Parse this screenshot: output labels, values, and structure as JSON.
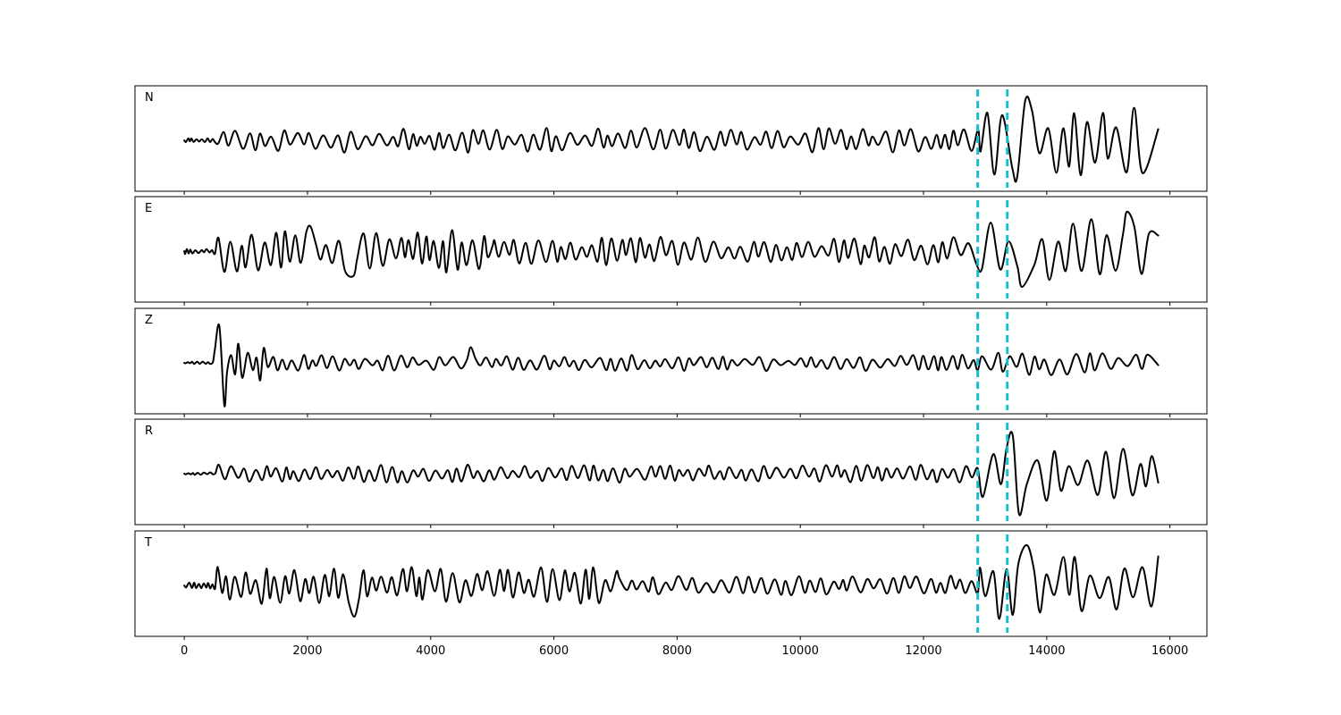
{
  "chart_data": {
    "type": "line",
    "title": "",
    "xlabel": "",
    "ylabel": "",
    "xlim": [
      -800,
      16600
    ],
    "x_start": 0,
    "x_end": 15800,
    "x_ticks": [
      0,
      2000,
      4000,
      6000,
      8000,
      10000,
      12000,
      14000,
      16000
    ],
    "x_tick_labels": [
      "0",
      "2000",
      "4000",
      "6000",
      "8000",
      "10000",
      "12000",
      "14000",
      "16000"
    ],
    "grid": false,
    "line_color": "#000000",
    "vertical_markers": {
      "x": [
        12880,
        13360
      ],
      "color": "#17BECF",
      "style": "dashed"
    },
    "panels": [
      {
        "label": "N",
        "segments": [
          {
            "x_start": 0,
            "x_end": 500,
            "amp": 0.05,
            "period": 85
          },
          {
            "x_start": 500,
            "x_end": 12880,
            "amp": 0.28,
            "period": 190
          },
          {
            "x_start": 12880,
            "x_end": 15800,
            "amp": 0.78,
            "period": 260
          }
        ],
        "peaks": [
          {
            "x": 13650,
            "y": 0.88
          },
          {
            "x": 13520,
            "y": -0.82
          },
          {
            "x": 15810,
            "y": 0.25
          }
        ]
      },
      {
        "label": "E",
        "segments": [
          {
            "x_start": 0,
            "x_end": 500,
            "amp": 0.07,
            "period": 85
          },
          {
            "x_start": 500,
            "x_end": 5000,
            "amp": 0.48,
            "period": 170
          },
          {
            "x_start": 5000,
            "x_end": 12880,
            "amp": 0.32,
            "period": 190
          },
          {
            "x_start": 12880,
            "x_end": 15800,
            "amp": 0.72,
            "period": 240
          }
        ],
        "peaks": [
          {
            "x": 2050,
            "y": 0.55
          },
          {
            "x": 2750,
            "y": -0.55
          },
          {
            "x": 15300,
            "y": 0.88
          },
          {
            "x": 13600,
            "y": -0.8
          },
          {
            "x": 15810,
            "y": 0.35
          }
        ]
      },
      {
        "label": "Z",
        "segments": [
          {
            "x_start": 0,
            "x_end": 450,
            "amp": 0.03,
            "period": 90
          },
          {
            "x_start": 450,
            "x_end": 1300,
            "amp": 0.45,
            "period": 140
          },
          {
            "x_start": 1300,
            "x_end": 12880,
            "amp": 0.18,
            "period": 190
          },
          {
            "x_start": 12880,
            "x_end": 15800,
            "amp": 0.28,
            "period": 240
          }
        ],
        "peaks": [
          {
            "x": 570,
            "y": 0.82
          },
          {
            "x": 650,
            "y": -0.95
          },
          {
            "x": 4650,
            "y": 0.35
          },
          {
            "x": 15810,
            "y": -0.05
          }
        ]
      },
      {
        "label": "R",
        "segments": [
          {
            "x_start": 0,
            "x_end": 500,
            "amp": 0.03,
            "period": 85
          },
          {
            "x_start": 500,
            "x_end": 12880,
            "amp": 0.2,
            "period": 180
          },
          {
            "x_start": 12880,
            "x_end": 15800,
            "amp": 0.62,
            "period": 250
          }
        ],
        "peaks": [
          {
            "x": 13450,
            "y": 0.85
          },
          {
            "x": 13550,
            "y": -0.9
          },
          {
            "x": 15810,
            "y": -0.2
          }
        ]
      },
      {
        "label": "T",
        "segments": [
          {
            "x_start": 0,
            "x_end": 500,
            "amp": 0.07,
            "period": 85
          },
          {
            "x_start": 500,
            "x_end": 7000,
            "amp": 0.42,
            "period": 170
          },
          {
            "x_start": 7000,
            "x_end": 12880,
            "amp": 0.22,
            "period": 190
          },
          {
            "x_start": 12880,
            "x_end": 15800,
            "amp": 0.72,
            "period": 230
          }
        ],
        "peaks": [
          {
            "x": 2760,
            "y": -0.7
          },
          {
            "x": 13680,
            "y": 0.9
          },
          {
            "x": 13230,
            "y": -0.75
          },
          {
            "x": 15810,
            "y": 0.65
          }
        ]
      }
    ]
  }
}
